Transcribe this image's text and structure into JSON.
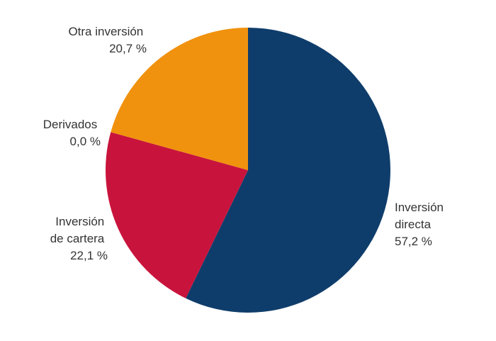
{
  "chart_data": {
    "type": "pie",
    "title": "",
    "start_angle_deg": 0,
    "direction": "clockwise",
    "slices": [
      {
        "label_lines": [
          "Inversión",
          "directa"
        ],
        "value": 57.2,
        "value_label": "57,2 %",
        "color": "#0f3d6b"
      },
      {
        "label_lines": [
          "Inversión",
          "de cartera"
        ],
        "value": 22.1,
        "value_label": "22,1 %",
        "color": "#c8143c"
      },
      {
        "label_lines": [
          "Derivados"
        ],
        "value": 0.0,
        "value_label": "0,0 %",
        "color": "#c8143c"
      },
      {
        "label_lines": [
          "Otra inversión"
        ],
        "value": 20.7,
        "value_label": "20,7 %",
        "color": "#f0920e"
      }
    ]
  }
}
